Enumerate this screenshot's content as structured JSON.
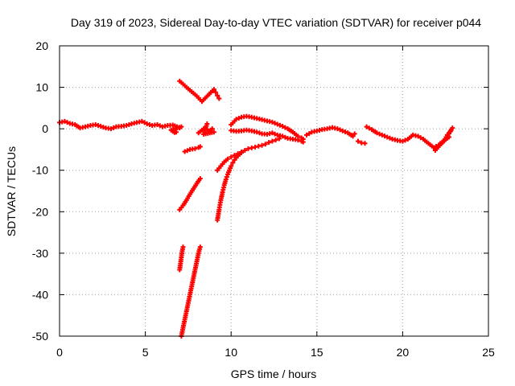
{
  "chart_data": {
    "type": "scatter",
    "title": "Day 319 of 2023, Sidereal Day-to-day VTEC variation (SDTVAR) for receiver p044",
    "xlabel": "GPS time / hours",
    "ylabel": "SDTVAR / TECUs",
    "xlim": [
      0,
      25
    ],
    "ylim": [
      -50,
      20
    ],
    "x_ticks": [
      0,
      5,
      10,
      15,
      20,
      25
    ],
    "y_ticks": [
      20,
      10,
      0,
      -10,
      -20,
      -30,
      -40,
      -50
    ],
    "x_tick_labels": [
      "0",
      "5",
      "10",
      "15",
      "20",
      "25"
    ],
    "y_tick_labels": [
      "20",
      "10",
      "0",
      "-10",
      "-20",
      "-30",
      "-40",
      "-50"
    ],
    "grid": true,
    "marker": "plus",
    "color": "#ff0000",
    "series": [
      {
        "points": [
          [
            0.0,
            1.5
          ],
          [
            0.3,
            1.8
          ],
          [
            0.6,
            1.3
          ],
          [
            0.9,
            1.0
          ],
          [
            1.2,
            0.2
          ],
          [
            1.5,
            0.5
          ],
          [
            1.8,
            0.8
          ],
          [
            2.1,
            1.0
          ],
          [
            2.4,
            0.6
          ],
          [
            2.7,
            0.2
          ],
          [
            3.0,
            0.0
          ],
          [
            3.3,
            0.5
          ],
          [
            3.6,
            0.6
          ],
          [
            3.9,
            0.8
          ],
          [
            4.2,
            1.2
          ],
          [
            4.5,
            1.5
          ],
          [
            4.8,
            1.8
          ],
          [
            5.1,
            1.2
          ],
          [
            5.4,
            0.8
          ],
          [
            5.7,
            1.0
          ],
          [
            6.0,
            0.5
          ],
          [
            6.3,
            0.8
          ],
          [
            6.6,
            0.9
          ],
          [
            6.85,
            0.5
          ],
          [
            7.0,
            0.2
          ],
          [
            7.1,
            0.5
          ],
          [
            6.5,
            -0.3
          ],
          [
            6.6,
            -0.6
          ],
          [
            6.7,
            -0.9
          ],
          [
            6.8,
            -0.8
          ]
        ]
      },
      {
        "points": [
          [
            7.0,
            11.5
          ],
          [
            7.2,
            10.8
          ],
          [
            7.4,
            10.0
          ],
          [
            7.6,
            9.3
          ],
          [
            7.8,
            8.6
          ],
          [
            8.0,
            7.9
          ],
          [
            8.2,
            7.0
          ],
          [
            8.3,
            6.6
          ],
          [
            9.0,
            9.5
          ],
          [
            9.1,
            8.8
          ],
          [
            9.2,
            8.0
          ],
          [
            9.3,
            7.3
          ]
        ]
      },
      {
        "points": [
          [
            8.1,
            -1.0
          ],
          [
            8.3,
            -0.3
          ],
          [
            8.5,
            0.3
          ],
          [
            8.7,
            -0.6
          ],
          [
            8.9,
            0.0
          ],
          [
            9.0,
            -0.8
          ],
          [
            8.4,
            -1.3
          ],
          [
            8.6,
            1.2
          ]
        ]
      },
      {
        "points": [
          [
            7.3,
            -5.5
          ],
          [
            7.6,
            -5.0
          ],
          [
            7.9,
            -4.8
          ],
          [
            8.1,
            -4.5
          ],
          [
            8.2,
            -4.3
          ]
        ]
      },
      {
        "points": [
          [
            7.0,
            -19.5
          ],
          [
            7.2,
            -18.5
          ],
          [
            7.4,
            -17.2
          ],
          [
            7.6,
            -15.8
          ],
          [
            7.8,
            -14.5
          ],
          [
            8.0,
            -13.2
          ],
          [
            8.2,
            -12.0
          ]
        ]
      },
      {
        "points": [
          [
            7.0,
            -34.0
          ],
          [
            7.05,
            -32.5
          ],
          [
            7.1,
            -31.0
          ],
          [
            7.15,
            -29.5
          ],
          [
            7.2,
            -28.5
          ]
        ]
      },
      {
        "points": [
          [
            7.1,
            -50.0
          ],
          [
            7.2,
            -48.0
          ],
          [
            7.3,
            -46.0
          ],
          [
            7.4,
            -44.0
          ],
          [
            7.5,
            -42.0
          ],
          [
            7.6,
            -40.0
          ],
          [
            7.7,
            -38.0
          ],
          [
            7.8,
            -36.0
          ],
          [
            7.9,
            -34.0
          ],
          [
            8.0,
            -32.0
          ],
          [
            8.1,
            -30.0
          ],
          [
            8.2,
            -28.5
          ]
        ]
      },
      {
        "points": [
          [
            9.2,
            -10.0
          ],
          [
            9.4,
            -9.0
          ],
          [
            9.6,
            -8.0
          ],
          [
            9.8,
            -7.3
          ],
          [
            10.0,
            -6.8
          ],
          [
            10.2,
            -6.4
          ],
          [
            10.4,
            -6.0
          ],
          [
            10.6,
            -5.6
          ],
          [
            10.8,
            -5.2
          ],
          [
            11.0,
            -4.8
          ],
          [
            11.2,
            -4.6
          ],
          [
            11.4,
            -4.4
          ],
          [
            11.6,
            -4.2
          ],
          [
            11.8,
            -4.0
          ],
          [
            12.0,
            -3.7
          ],
          [
            12.2,
            -3.3
          ],
          [
            12.4,
            -3.0
          ],
          [
            12.6,
            -2.7
          ],
          [
            12.8,
            -2.4
          ]
        ]
      },
      {
        "points": [
          [
            9.2,
            -22.0
          ],
          [
            9.3,
            -19.5
          ],
          [
            9.4,
            -17.2
          ],
          [
            9.5,
            -15.3
          ],
          [
            9.6,
            -13.6
          ],
          [
            9.7,
            -12.2
          ],
          [
            9.8,
            -11.0
          ],
          [
            9.9,
            -10.0
          ],
          [
            10.0,
            -9.0
          ],
          [
            10.1,
            -8.2
          ],
          [
            10.2,
            -7.5
          ],
          [
            10.4,
            -6.5
          ],
          [
            10.6,
            -5.8
          ]
        ]
      },
      {
        "points": [
          [
            10.0,
            1.0
          ],
          [
            10.3,
            2.3
          ],
          [
            10.6,
            2.8
          ],
          [
            10.9,
            3.0
          ],
          [
            11.2,
            2.8
          ],
          [
            11.5,
            2.5
          ],
          [
            11.8,
            2.2
          ],
          [
            12.1,
            1.9
          ],
          [
            12.4,
            1.6
          ],
          [
            12.7,
            1.1
          ],
          [
            13.0,
            0.6
          ],
          [
            13.3,
            0.0
          ],
          [
            13.6,
            -0.8
          ],
          [
            13.9,
            -1.8
          ],
          [
            14.1,
            -2.2
          ],
          [
            14.2,
            -2.5
          ]
        ]
      },
      {
        "points": [
          [
            10.0,
            -0.4
          ],
          [
            10.3,
            -0.6
          ],
          [
            10.6,
            -0.5
          ],
          [
            10.9,
            -0.3
          ],
          [
            11.2,
            -0.5
          ],
          [
            11.5,
            -0.8
          ],
          [
            11.8,
            -1.2
          ],
          [
            12.1,
            -1.3
          ],
          [
            12.4,
            -1.0
          ],
          [
            12.7,
            -1.5
          ],
          [
            13.0,
            -1.8
          ],
          [
            13.3,
            -2.3
          ],
          [
            13.6,
            -2.5
          ],
          [
            13.9,
            -2.7
          ],
          [
            14.1,
            -3.0
          ],
          [
            14.2,
            -3.2
          ]
        ]
      },
      {
        "points": [
          [
            14.4,
            -1.5
          ],
          [
            14.7,
            -0.8
          ],
          [
            15.0,
            -0.5
          ],
          [
            15.3,
            -0.2
          ],
          [
            15.6,
            0.0
          ],
          [
            15.9,
            0.3
          ],
          [
            16.2,
            0.0
          ],
          [
            16.5,
            -0.5
          ],
          [
            16.8,
            -1.0
          ],
          [
            17.1,
            -1.8
          ],
          [
            17.2,
            -1.2
          ]
        ]
      },
      {
        "points": [
          [
            17.4,
            -3.0
          ],
          [
            17.6,
            -3.4
          ],
          [
            17.8,
            -3.5
          ]
        ]
      },
      {
        "points": [
          [
            17.9,
            0.5
          ],
          [
            18.2,
            -0.2
          ],
          [
            18.5,
            -1.0
          ],
          [
            18.8,
            -1.5
          ],
          [
            19.1,
            -2.0
          ],
          [
            19.4,
            -2.5
          ],
          [
            19.7,
            -2.8
          ],
          [
            20.0,
            -3.0
          ],
          [
            20.3,
            -2.5
          ],
          [
            20.6,
            -1.5
          ],
          [
            20.9,
            -1.8
          ],
          [
            21.2,
            -2.5
          ],
          [
            21.5,
            -3.5
          ],
          [
            21.8,
            -4.5
          ],
          [
            22.1,
            -4.0
          ],
          [
            22.4,
            -3.0
          ],
          [
            22.6,
            -1.5
          ],
          [
            22.8,
            -0.5
          ],
          [
            22.9,
            0.2
          ],
          [
            22.5,
            -2.5
          ],
          [
            21.9,
            -5.2
          ],
          [
            22.2,
            -3.5
          ],
          [
            22.7,
            -2.0
          ]
        ]
      }
    ]
  }
}
